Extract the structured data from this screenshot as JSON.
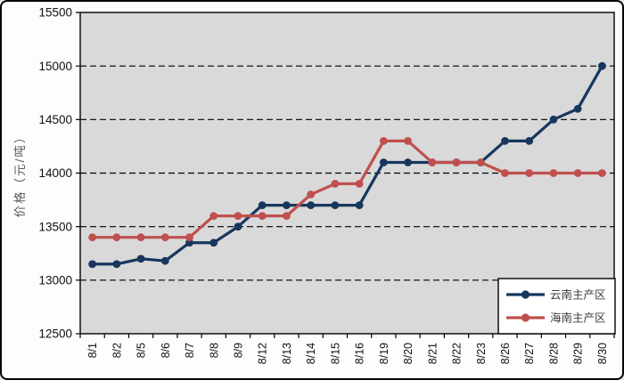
{
  "chart_data": {
    "type": "line",
    "title": "",
    "xlabel": "",
    "ylabel": "价格（元/吨）",
    "categories": [
      "8/1",
      "8/2",
      "8/5",
      "8/6",
      "8/7",
      "8/8",
      "8/9",
      "8/12",
      "8/13",
      "8/14",
      "8/15",
      "8/16",
      "8/19",
      "8/20",
      "8/21",
      "8/22",
      "8/23",
      "8/26",
      "8/27",
      "8/28",
      "8/29",
      "8/30"
    ],
    "series": [
      {
        "name": "云南主产区",
        "color": "#17375D",
        "values": [
          13150,
          13150,
          13200,
          13180,
          13350,
          13350,
          13500,
          13700,
          13700,
          13700,
          13700,
          13700,
          14100,
          14100,
          14100,
          14100,
          14100,
          14300,
          14300,
          14500,
          14600,
          15000
        ]
      },
      {
        "name": "海南主产区",
        "color": "#C0504D",
        "values": [
          13400,
          13400,
          13400,
          13400,
          13400,
          13600,
          13600,
          13600,
          13600,
          13800,
          13900,
          13900,
          14300,
          14300,
          14100,
          14100,
          14100,
          14000,
          14000,
          14000,
          14000,
          14000
        ]
      }
    ],
    "ylim": [
      12500,
      15500
    ],
    "ytick_step": 500,
    "yticks": [
      12500,
      13000,
      13500,
      14000,
      14500,
      15000,
      15500
    ],
    "gridline_values": [
      13000,
      13500,
      14000,
      14500,
      15000
    ],
    "gridline_style": "dashed",
    "plot_background": "#D9D9D9",
    "outer_background": "#FDFDFD",
    "axis_color": "#000000",
    "legend_position": "bottom-right",
    "legend_background": "#FFFFFF",
    "marker": "circle"
  }
}
